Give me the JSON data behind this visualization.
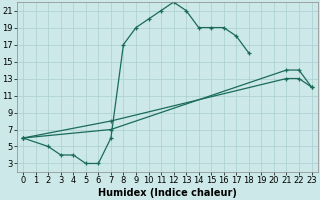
{
  "xlabel": "Humidex (Indice chaleur)",
  "xlim": [
    -0.5,
    23.5
  ],
  "ylim": [
    2,
    22
  ],
  "xticks": [
    0,
    1,
    2,
    3,
    4,
    5,
    6,
    7,
    8,
    9,
    10,
    11,
    12,
    13,
    14,
    15,
    16,
    17,
    18,
    19,
    20,
    21,
    22,
    23
  ],
  "yticks": [
    3,
    5,
    7,
    9,
    11,
    13,
    15,
    17,
    19,
    21
  ],
  "bg_color": "#cce8e8",
  "line_color": "#1a6b5a",
  "grid_color": "#aacfcf",
  "line1_x": [
    0,
    2,
    3,
    4,
    5,
    6,
    7,
    8,
    9,
    10,
    11,
    12,
    13,
    14,
    15,
    16,
    17,
    18
  ],
  "line1_y": [
    6,
    5,
    4,
    4,
    3,
    3,
    6,
    17,
    19,
    20,
    21,
    22,
    21,
    19,
    19,
    19,
    18,
    16
  ],
  "line2_x": [
    0,
    7,
    21,
    22,
    23
  ],
  "line2_y": [
    6,
    7,
    14,
    14,
    12
  ],
  "line3_x": [
    0,
    7,
    21,
    22,
    23
  ],
  "line3_y": [
    6,
    8,
    13,
    13,
    12
  ],
  "axis_fontsize": 7,
  "tick_fontsize": 6
}
